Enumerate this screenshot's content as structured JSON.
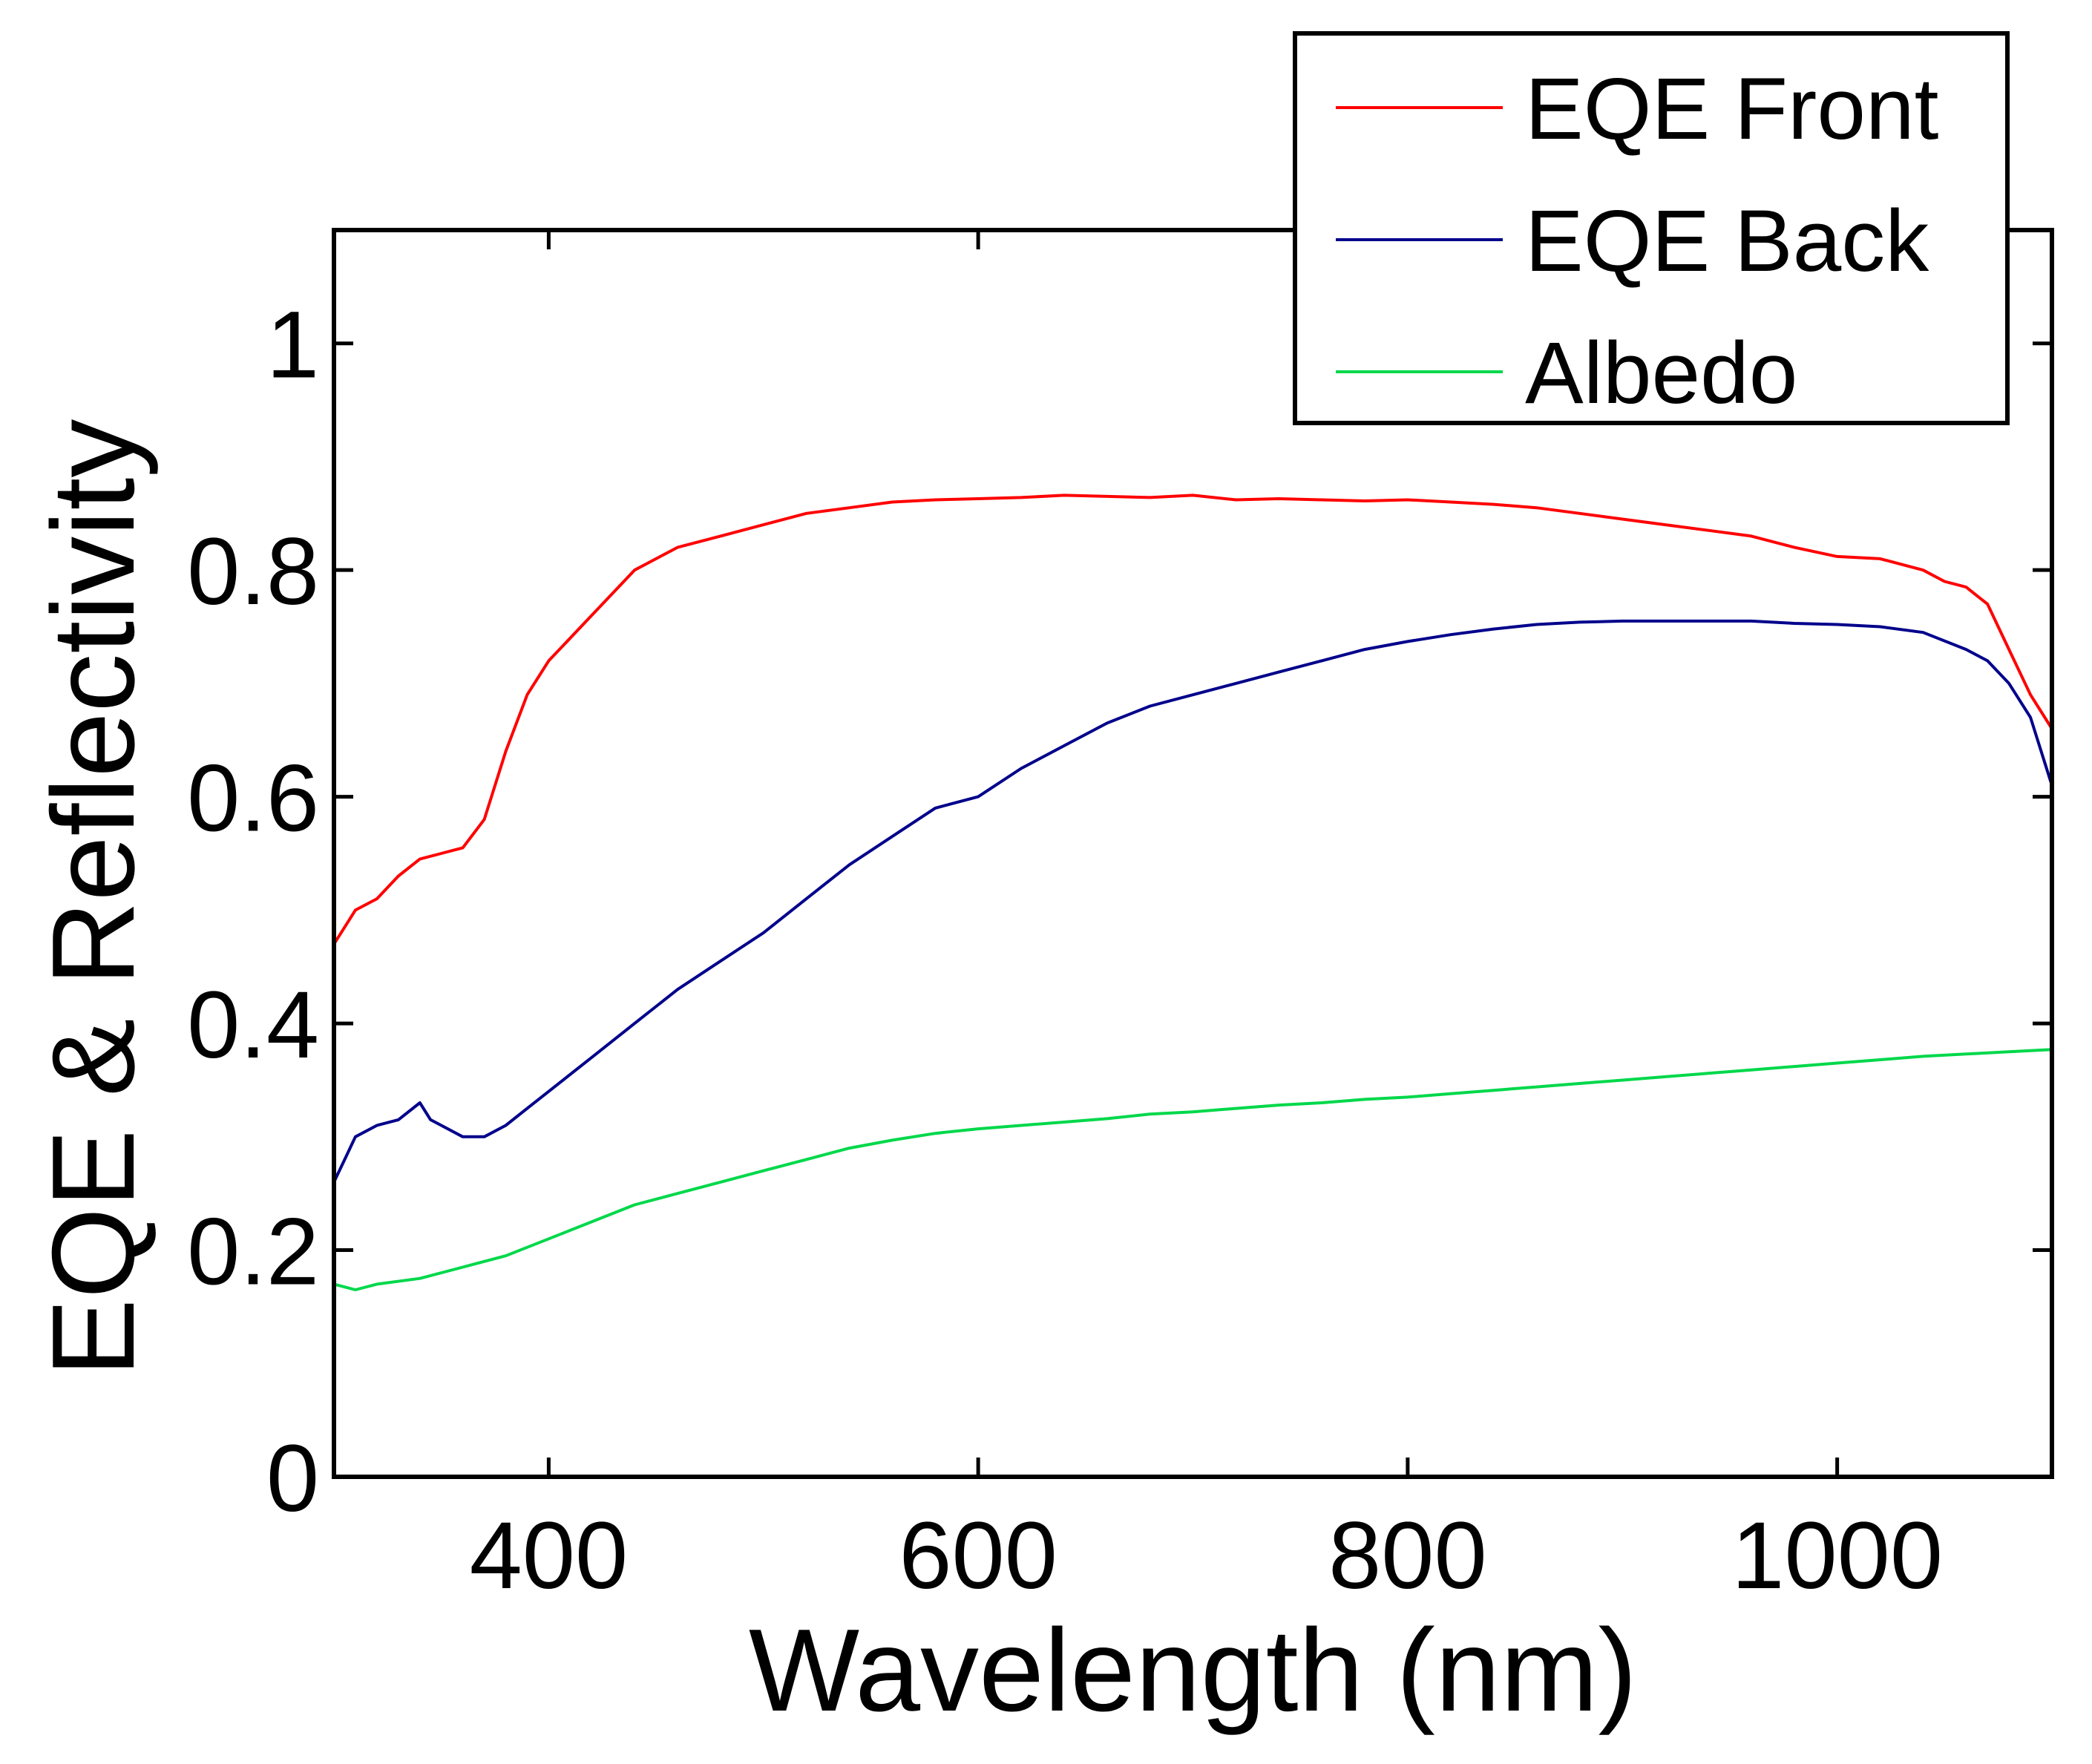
{
  "chart_data": {
    "type": "line",
    "title": "",
    "xlabel": "Wavelength (nm)",
    "ylabel": "EQE & Reflectivity",
    "xlim": [
      300,
      1100
    ],
    "ylim": [
      0,
      1.1
    ],
    "xticks": [
      400,
      600,
      800,
      1000
    ],
    "xtick_labels": [
      "400",
      "600",
      "800",
      "1000"
    ],
    "yticks": [
      0,
      0.2,
      0.4,
      0.6,
      0.8,
      1
    ],
    "ytick_labels": [
      "0",
      "0.2",
      "0.4",
      "0.6",
      "0.8",
      "1"
    ],
    "grid": false,
    "legend_position": "top-right",
    "series": [
      {
        "name": "EQE Front",
        "color": "#ff0000",
        "x": [
          300,
          310,
          320,
          330,
          340,
          350,
          360,
          370,
          380,
          390,
          400,
          420,
          440,
          460,
          480,
          500,
          520,
          540,
          560,
          580,
          600,
          620,
          640,
          660,
          680,
          700,
          720,
          740,
          760,
          780,
          800,
          820,
          840,
          860,
          880,
          900,
          920,
          940,
          960,
          980,
          1000,
          1020,
          1040,
          1050,
          1060,
          1070,
          1080,
          1090,
          1100
        ],
        "y": [
          0.47,
          0.5,
          0.51,
          0.53,
          0.545,
          0.55,
          0.555,
          0.58,
          0.64,
          0.69,
          0.72,
          0.76,
          0.8,
          0.82,
          0.83,
          0.84,
          0.85,
          0.855,
          0.86,
          0.862,
          0.863,
          0.864,
          0.866,
          0.865,
          0.864,
          0.866,
          0.862,
          0.863,
          0.862,
          0.861,
          0.862,
          0.86,
          0.858,
          0.855,
          0.85,
          0.845,
          0.84,
          0.835,
          0.83,
          0.82,
          0.812,
          0.81,
          0.8,
          0.79,
          0.785,
          0.77,
          0.73,
          0.69,
          0.66
        ]
      },
      {
        "name": "EQE Back",
        "color": "#00008b",
        "x": [
          300,
          305,
          310,
          320,
          330,
          340,
          345,
          350,
          360,
          370,
          380,
          390,
          400,
          420,
          440,
          460,
          480,
          500,
          520,
          540,
          560,
          580,
          600,
          620,
          640,
          660,
          680,
          700,
          720,
          740,
          760,
          780,
          800,
          820,
          840,
          860,
          880,
          900,
          920,
          940,
          960,
          980,
          1000,
          1020,
          1040,
          1060,
          1070,
          1080,
          1090,
          1100
        ],
        "y": [
          0.26,
          0.28,
          0.3,
          0.31,
          0.315,
          0.33,
          0.315,
          0.31,
          0.3,
          0.3,
          0.31,
          0.325,
          0.34,
          0.37,
          0.4,
          0.43,
          0.455,
          0.48,
          0.51,
          0.54,
          0.565,
          0.59,
          0.6,
          0.625,
          0.645,
          0.665,
          0.68,
          0.69,
          0.7,
          0.71,
          0.72,
          0.73,
          0.737,
          0.743,
          0.748,
          0.752,
          0.754,
          0.755,
          0.755,
          0.755,
          0.755,
          0.753,
          0.752,
          0.75,
          0.745,
          0.73,
          0.72,
          0.7,
          0.67,
          0.61
        ]
      },
      {
        "name": "Albedo",
        "color": "#00d84a",
        "x": [
          300,
          310,
          320,
          340,
          360,
          380,
          400,
          420,
          440,
          460,
          480,
          500,
          520,
          540,
          560,
          580,
          600,
          620,
          640,
          660,
          680,
          700,
          720,
          740,
          760,
          780,
          800,
          820,
          840,
          860,
          880,
          900,
          920,
          940,
          960,
          980,
          1000,
          1020,
          1040,
          1060,
          1080,
          1100
        ],
        "y": [
          0.17,
          0.165,
          0.17,
          0.175,
          0.185,
          0.195,
          0.21,
          0.225,
          0.24,
          0.25,
          0.26,
          0.27,
          0.28,
          0.29,
          0.297,
          0.303,
          0.307,
          0.31,
          0.313,
          0.316,
          0.32,
          0.322,
          0.325,
          0.328,
          0.33,
          0.333,
          0.335,
          0.338,
          0.341,
          0.344,
          0.347,
          0.35,
          0.353,
          0.356,
          0.359,
          0.362,
          0.365,
          0.368,
          0.371,
          0.373,
          0.375,
          0.377
        ]
      }
    ]
  }
}
